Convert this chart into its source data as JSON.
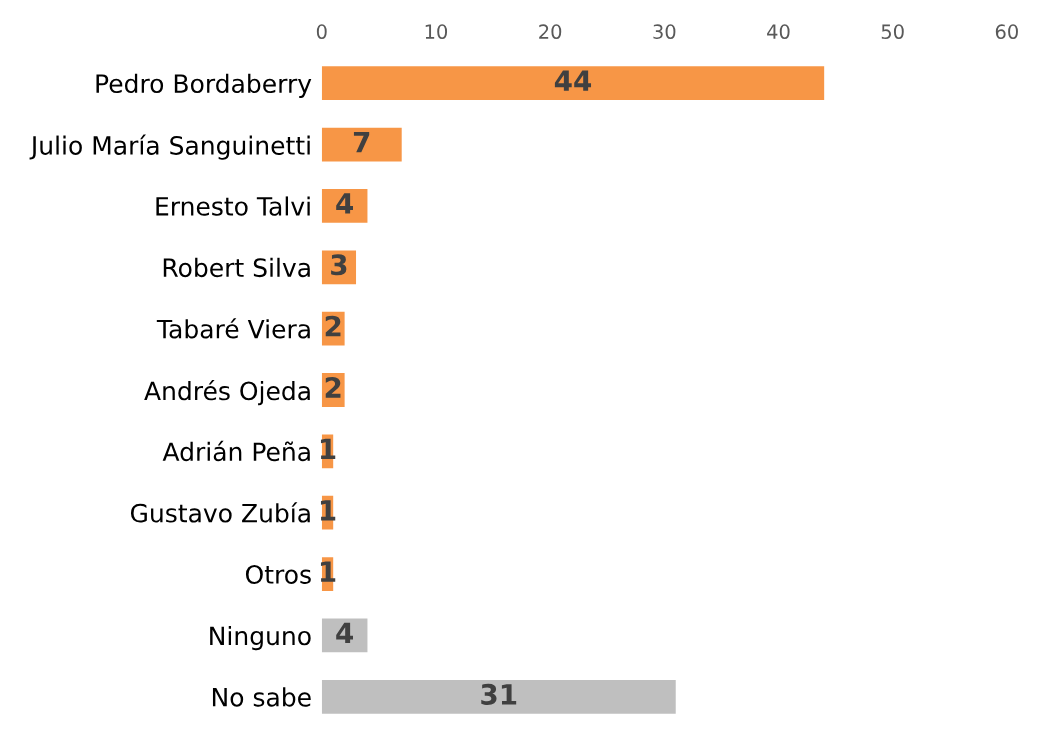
{
  "chart_data": {
    "type": "bar",
    "orientation": "horizontal",
    "categories": [
      "Pedro Bordaberry",
      "Julio María Sanguinetti",
      "Ernesto Talvi",
      "Robert Silva",
      "Tabaré Viera",
      "Andrés Ojeda",
      "Adrián Peña",
      "Gustavo Zubía",
      "Otros",
      "Ninguno",
      "No sabe"
    ],
    "values": [
      44,
      7,
      4,
      3,
      2,
      2,
      1,
      1,
      1,
      4,
      31
    ],
    "colors": [
      "#f79646",
      "#f79646",
      "#f79646",
      "#f79646",
      "#f79646",
      "#f79646",
      "#f79646",
      "#f79646",
      "#f79646",
      "#bfbfbf",
      "#bfbfbf"
    ],
    "xlim": [
      0,
      60
    ],
    "xticks": [
      0,
      10,
      20,
      30,
      40,
      50,
      60
    ],
    "data_labels": true,
    "grid": false,
    "legend": false
  }
}
